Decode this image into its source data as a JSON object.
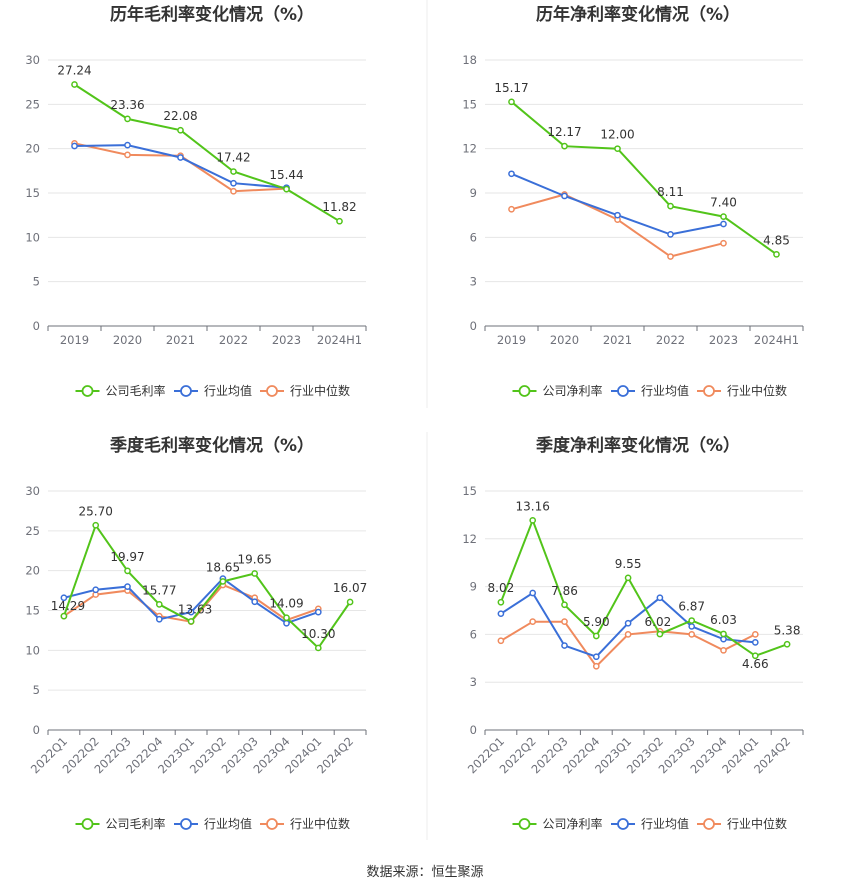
{
  "source_text": "数据来源：恒生聚源",
  "colors": {
    "company": "#52c41a",
    "industry_avg": "#3a6fd8",
    "industry_median": "#f08a5d",
    "grid": "#e6e6e6",
    "axis": "#6e7079"
  },
  "chart_data": [
    {
      "type": "line",
      "title": "历年毛利率变化情况（%）",
      "categories": [
        "2019",
        "2020",
        "2021",
        "2022",
        "2023",
        "2024H1"
      ],
      "ylim": [
        0,
        30
      ],
      "yticks": [
        0,
        5,
        10,
        15,
        20,
        25,
        30
      ],
      "grid": true,
      "legend_position": "bottom-center",
      "rotate_x": false,
      "series": [
        {
          "name": "公司毛利率",
          "color": "#52c41a",
          "labels": true,
          "values": [
            27.24,
            23.36,
            22.08,
            17.42,
            15.44,
            11.82
          ]
        },
        {
          "name": "行业均值",
          "color": "#3a6fd8",
          "labels": false,
          "values": [
            20.3,
            20.4,
            19.0,
            16.1,
            15.6,
            null
          ]
        },
        {
          "name": "行业中位数",
          "color": "#f08a5d",
          "labels": false,
          "values": [
            20.6,
            19.3,
            19.2,
            15.2,
            15.5,
            null
          ]
        }
      ]
    },
    {
      "type": "line",
      "title": "历年净利率变化情况（%）",
      "categories": [
        "2019",
        "2020",
        "2021",
        "2022",
        "2023",
        "2024H1"
      ],
      "ylim": [
        0,
        18
      ],
      "yticks": [
        0,
        3,
        6,
        9,
        12,
        15,
        18
      ],
      "grid": true,
      "legend_position": "bottom-center",
      "rotate_x": false,
      "series": [
        {
          "name": "公司净利率",
          "color": "#52c41a",
          "labels": true,
          "values": [
            15.17,
            12.17,
            12.0,
            8.11,
            7.4,
            4.85
          ],
          "label_text": [
            "15.17",
            "12.17",
            "12.00",
            "8.11",
            "7.40",
            "4.85"
          ]
        },
        {
          "name": "行业均值",
          "color": "#3a6fd8",
          "labels": false,
          "values": [
            10.3,
            8.8,
            7.5,
            6.2,
            6.9,
            null
          ]
        },
        {
          "name": "行业中位数",
          "color": "#f08a5d",
          "labels": false,
          "values": [
            7.9,
            8.9,
            7.2,
            4.7,
            5.6,
            null
          ]
        }
      ]
    },
    {
      "type": "line",
      "title": "季度毛利率变化情况（%）",
      "categories": [
        "2022Q1",
        "2022Q2",
        "2022Q3",
        "2022Q4",
        "2023Q1",
        "2023Q2",
        "2023Q3",
        "2023Q4",
        "2024Q1",
        "2024Q2"
      ],
      "ylim": [
        0,
        30
      ],
      "yticks": [
        0,
        5,
        10,
        15,
        20,
        25,
        30
      ],
      "grid": true,
      "legend_position": "bottom-center",
      "rotate_x": true,
      "series": [
        {
          "name": "公司毛利率",
          "color": "#52c41a",
          "labels": true,
          "values": [
            14.29,
            25.7,
            19.97,
            15.77,
            13.63,
            18.65,
            19.65,
            14.09,
            10.3,
            16.07
          ],
          "label_text": [
            "14.29",
            "25.70",
            "19.97",
            "15.77",
            "13.63",
            "18.65",
            "19.65",
            "14.09",
            "10.30",
            "16.07"
          ]
        },
        {
          "name": "行业均值",
          "color": "#3a6fd8",
          "labels": false,
          "values": [
            16.6,
            17.6,
            18.0,
            13.9,
            14.8,
            19.0,
            16.1,
            13.4,
            14.8,
            null
          ]
        },
        {
          "name": "行业中位数",
          "color": "#f08a5d",
          "labels": false,
          "values": [
            14.3,
            17.0,
            17.5,
            14.3,
            13.6,
            18.2,
            16.6,
            13.8,
            15.2,
            null
          ]
        }
      ]
    },
    {
      "type": "line",
      "title": "季度净利率变化情况（%）",
      "categories": [
        "2022Q1",
        "2022Q2",
        "2022Q3",
        "2022Q4",
        "2023Q1",
        "2023Q2",
        "2023Q3",
        "2023Q4",
        "2024Q1",
        "2024Q2"
      ],
      "ylim": [
        0,
        15
      ],
      "yticks": [
        0,
        3,
        6,
        9,
        12,
        15
      ],
      "grid": true,
      "legend_position": "bottom-center",
      "rotate_x": true,
      "series": [
        {
          "name": "公司净利率",
          "color": "#52c41a",
          "labels": true,
          "values": [
            8.02,
            13.16,
            7.86,
            5.9,
            9.55,
            6.02,
            6.87,
            6.03,
            4.66,
            5.38
          ],
          "label_text": [
            "8.02",
            "13.16",
            "7.86",
            "5.90",
            "9.55",
            "6.02",
            "6.87",
            "6.03",
            "4.66",
            "5.38"
          ]
        },
        {
          "name": "行业均值",
          "color": "#3a6fd8",
          "labels": false,
          "values": [
            7.3,
            8.6,
            5.3,
            4.6,
            6.7,
            8.3,
            6.5,
            5.7,
            5.5,
            null
          ]
        },
        {
          "name": "行业中位数",
          "color": "#f08a5d",
          "labels": false,
          "values": [
            5.6,
            6.8,
            6.8,
            4.0,
            6.0,
            6.2,
            6.0,
            5.0,
            6.0,
            null
          ]
        }
      ]
    }
  ]
}
